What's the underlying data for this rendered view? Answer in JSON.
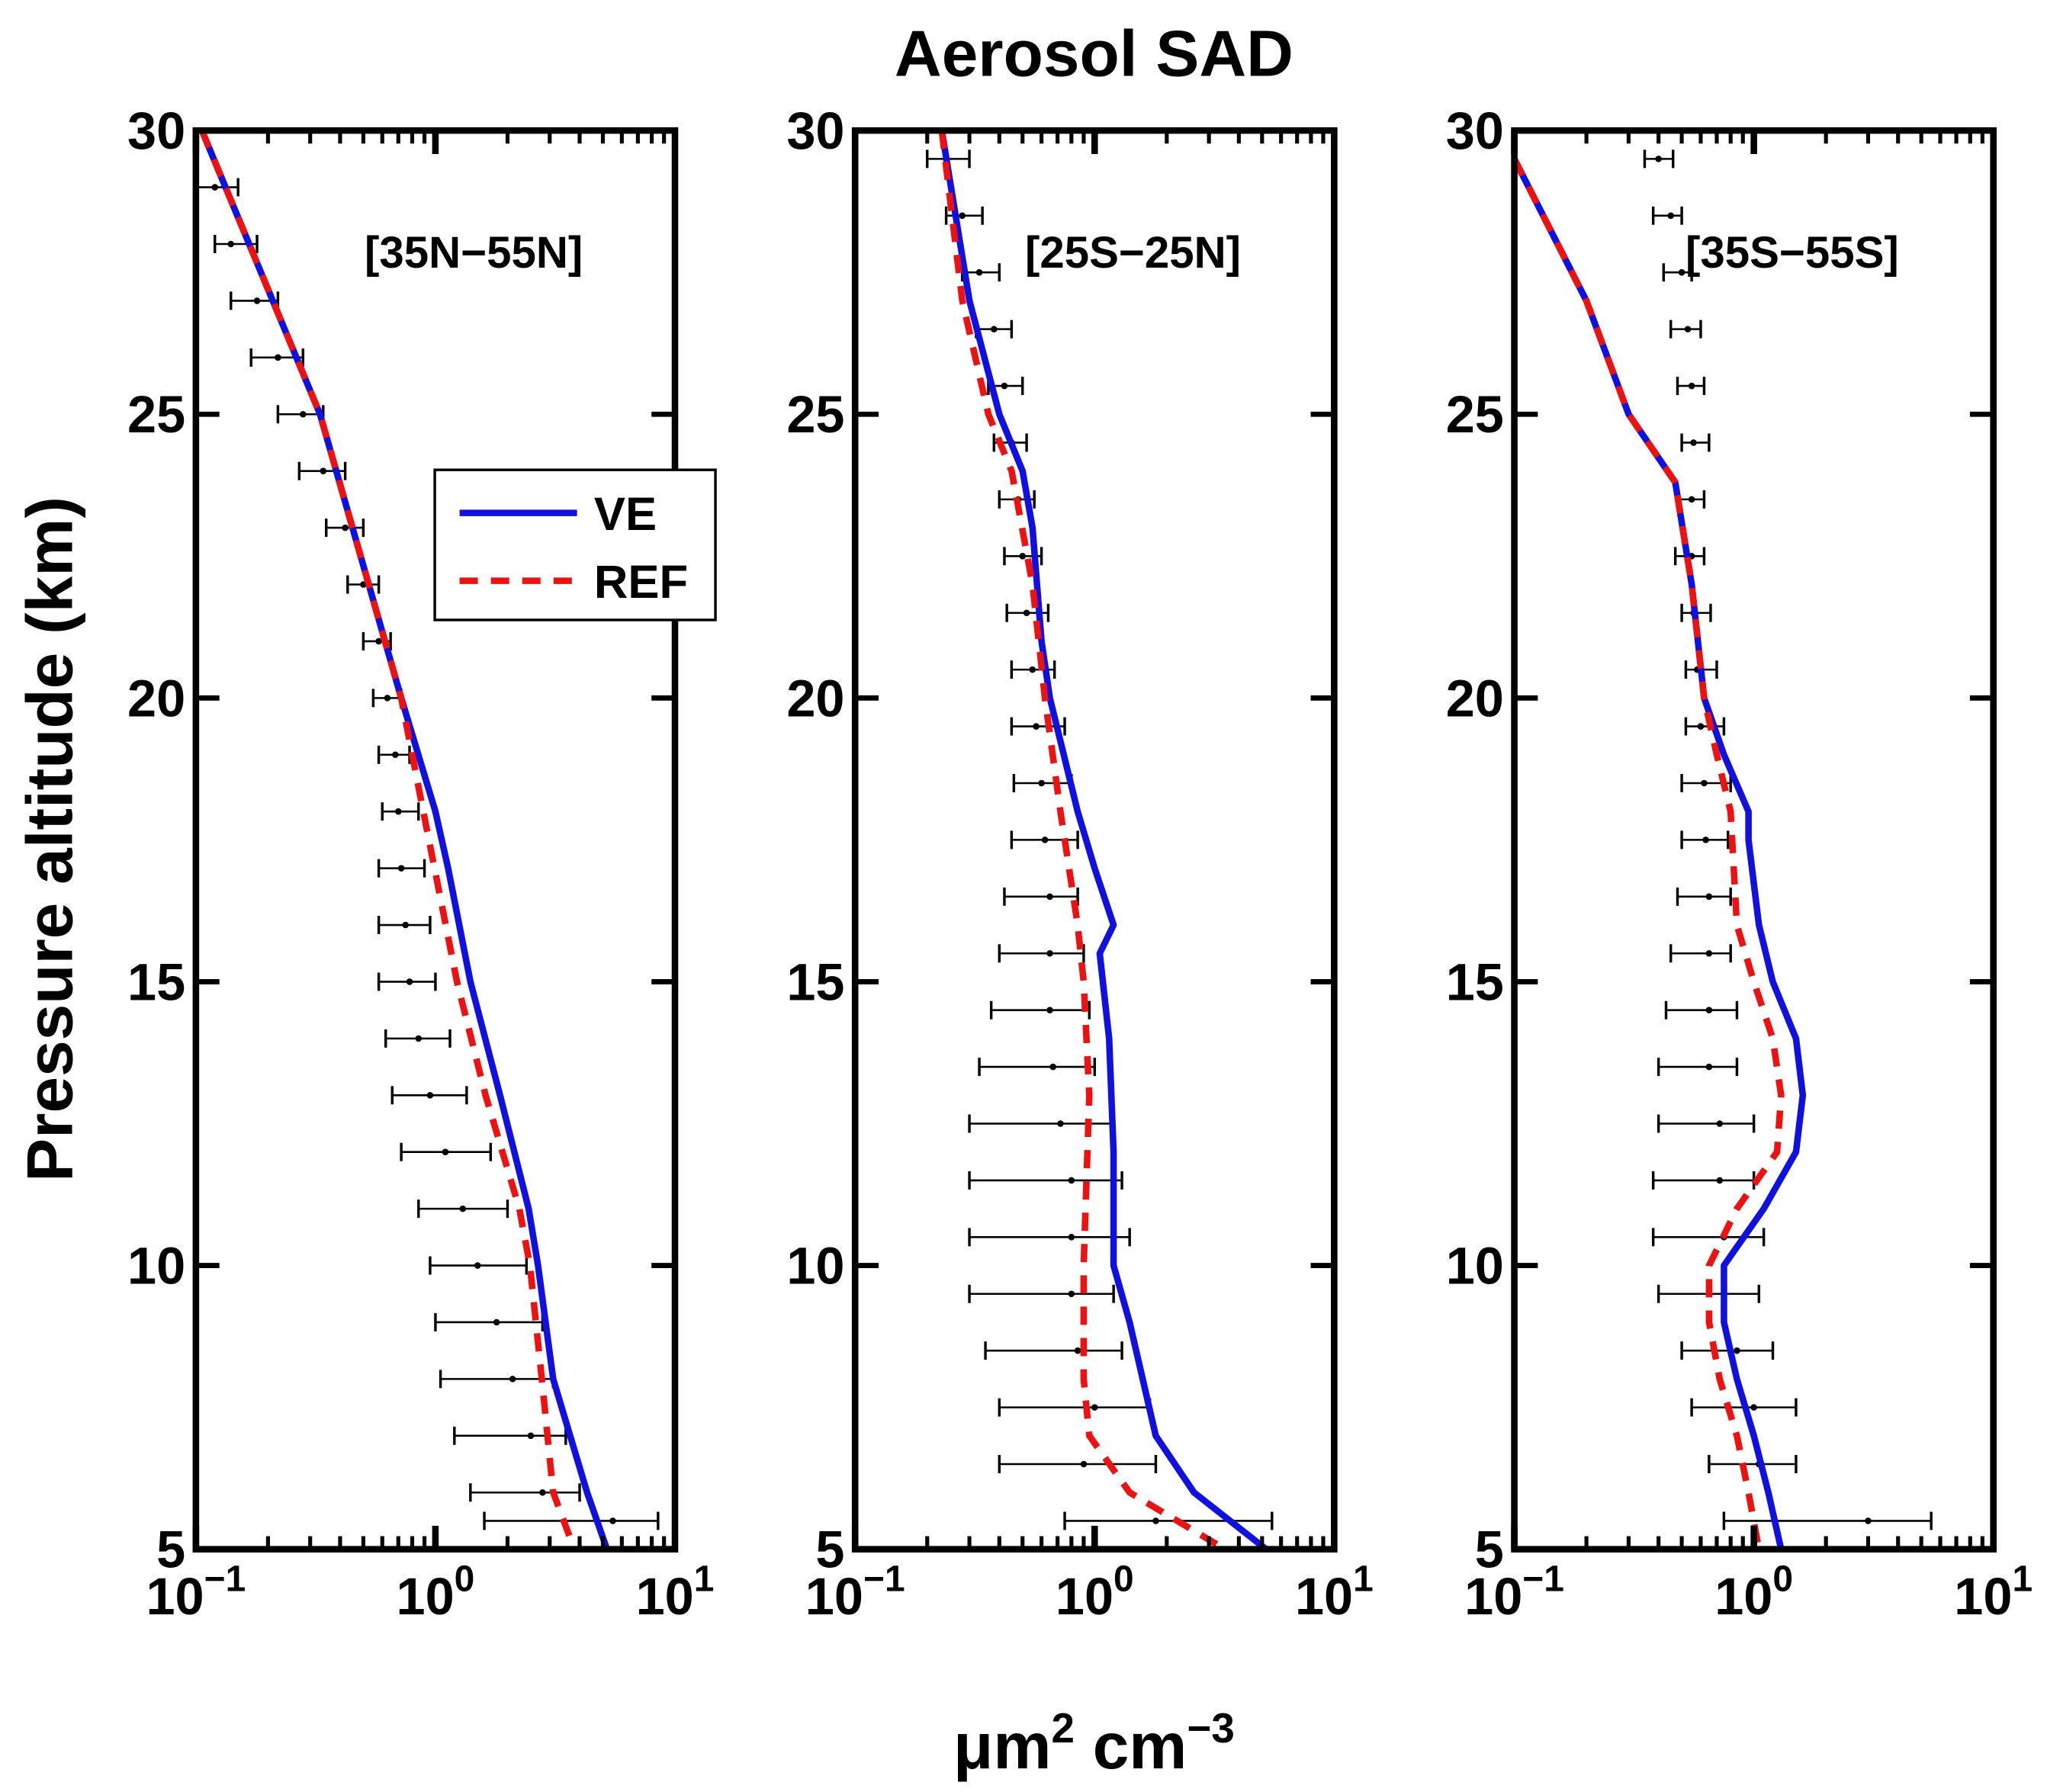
{
  "chart_data": {
    "type": "line",
    "title": "Aerosol SAD",
    "ylabel": "Pressure altitude (km)",
    "xlabel": {
      "base": "μm",
      "sup1": "2",
      "mid": " cm",
      "sup2": "−3"
    },
    "xscale": "log",
    "xlim": [
      0.1,
      10
    ],
    "ylim": [
      5,
      30
    ],
    "xticks": [
      {
        "base": "10",
        "exp": "−1"
      },
      {
        "base": "10",
        "exp": "0"
      },
      {
        "base": "10",
        "exp": "1"
      }
    ],
    "yticks": [
      "5",
      "10",
      "15",
      "20",
      "25",
      "30"
    ],
    "legend": {
      "placement": "inside first panel, upper-middle",
      "entries": [
        {
          "label": "VE",
          "color": "#1010e0",
          "style": "solid"
        },
        {
          "label": "REF",
          "color": "#ee1111",
          "style": "dashed"
        }
      ]
    },
    "panels": [
      {
        "label": "[35N−55N]",
        "series": [
          {
            "name": "VE",
            "alt": [
              30,
              25,
              20,
              18,
              17,
              15,
              13,
              11,
              10,
              8,
              6,
              5
            ],
            "x": [
              0.106,
              0.33,
              0.72,
              1.0,
              1.13,
              1.4,
              1.86,
              2.45,
              2.68,
              3.1,
              4.3,
              5.2
            ]
          },
          {
            "name": "REF",
            "alt": [
              30,
              25,
              20,
              18,
              15,
              13,
              11,
              10,
              8,
              6,
              5
            ],
            "x": [
              0.106,
              0.33,
              0.72,
              0.89,
              1.23,
              1.62,
              2.24,
              2.48,
              2.78,
              3.1,
              3.8
            ]
          }
        ],
        "obs": {
          "alt": [
            29,
            28,
            27,
            26,
            25,
            24,
            23,
            22,
            21,
            20,
            19,
            18,
            17,
            16,
            15,
            14,
            13,
            12,
            11,
            10,
            9,
            8,
            7,
            6,
            5.5
          ],
          "mean": [
            0.12,
            0.14,
            0.18,
            0.22,
            0.28,
            0.34,
            0.42,
            0.5,
            0.58,
            0.63,
            0.68,
            0.7,
            0.72,
            0.75,
            0.78,
            0.85,
            0.95,
            1.1,
            1.3,
            1.5,
            1.8,
            2.1,
            2.5,
            2.8,
            5.5
          ],
          "low": [
            0.1,
            0.12,
            0.14,
            0.17,
            0.22,
            0.27,
            0.35,
            0.43,
            0.5,
            0.55,
            0.58,
            0.6,
            0.58,
            0.58,
            0.58,
            0.62,
            0.66,
            0.72,
            0.85,
            0.95,
            1.0,
            1.05,
            1.2,
            1.4,
            1.6
          ],
          "high": [
            0.15,
            0.18,
            0.22,
            0.28,
            0.34,
            0.42,
            0.5,
            0.58,
            0.65,
            0.72,
            0.78,
            0.85,
            0.9,
            0.95,
            1.0,
            1.15,
            1.35,
            1.7,
            2.0,
            2.4,
            2.8,
            3.1,
            3.5,
            4.0,
            8.5
          ]
        }
      },
      {
        "label": "[25S−25N]",
        "series": [
          {
            "name": "VE",
            "alt": [
              30,
              27,
              25,
              24,
              23,
              21,
              20,
              18,
              17,
              16,
              15.5,
              14,
              12,
              10,
              9,
              7,
              6,
              5
            ],
            "x": [
              0.23,
              0.3,
              0.4,
              0.5,
              0.55,
              0.6,
              0.65,
              0.85,
              1.0,
              1.2,
              1.05,
              1.15,
              1.2,
              1.2,
              1.4,
              1.8,
              2.6,
              5.2
            ]
          },
          {
            "name": "REF",
            "alt": [
              30,
              27,
              25,
              24,
              22,
              20,
              18,
              16,
              15,
              13,
              10,
              8,
              7,
              6,
              5
            ],
            "x": [
              0.23,
              0.28,
              0.36,
              0.45,
              0.55,
              0.62,
              0.72,
              0.85,
              0.9,
              0.95,
              0.9,
              0.9,
              0.95,
              1.4,
              3.5
            ]
          }
        ],
        "obs": {
          "alt": [
            29.5,
            28.5,
            27.5,
            26.5,
            25.5,
            24.5,
            23.5,
            22.5,
            21.5,
            20.5,
            19.5,
            18.5,
            17.5,
            16.5,
            15.5,
            14.5,
            13.5,
            12.5,
            11.5,
            10.5,
            9.5,
            8.5,
            7.5,
            6.5,
            5.5
          ],
          "mean": [
            0.24,
            0.28,
            0.33,
            0.38,
            0.42,
            0.45,
            0.48,
            0.5,
            0.52,
            0.55,
            0.57,
            0.6,
            0.62,
            0.65,
            0.65,
            0.65,
            0.67,
            0.72,
            0.8,
            0.8,
            0.8,
            0.85,
            1.0,
            0.9,
            1.8
          ],
          "low": [
            0.2,
            0.24,
            0.28,
            0.32,
            0.36,
            0.38,
            0.4,
            0.42,
            0.43,
            0.45,
            0.45,
            0.46,
            0.45,
            0.42,
            0.4,
            0.37,
            0.33,
            0.3,
            0.3,
            0.3,
            0.3,
            0.35,
            0.4,
            0.4,
            0.75
          ],
          "high": [
            0.3,
            0.34,
            0.4,
            0.45,
            0.5,
            0.52,
            0.56,
            0.6,
            0.64,
            0.68,
            0.75,
            0.8,
            0.85,
            0.85,
            0.9,
            0.95,
            1.0,
            1.2,
            1.3,
            1.4,
            1.2,
            1.3,
            1.7,
            1.8,
            5.5
          ]
        }
      },
      {
        "label": "[35S−55S]",
        "series": [
          {
            "name": "VE",
            "alt": [
              29.5,
              27,
              25,
              23.8,
              22,
              20,
              19,
              18,
              17.5,
              16,
              15,
              14,
              13,
              12,
              11,
              10,
              9,
              8,
              7,
              6,
              5
            ],
            "x": [
              0.1,
              0.2,
              0.3,
              0.47,
              0.55,
              0.62,
              0.75,
              0.95,
              0.95,
              1.05,
              1.2,
              1.5,
              1.6,
              1.5,
              1.1,
              0.75,
              0.75,
              0.85,
              1.0,
              1.15,
              1.3
            ]
          },
          {
            "name": "REF",
            "alt": [
              29.5,
              27,
              25,
              23.8,
              22,
              20,
              19,
              18,
              16,
              15,
              14,
              13,
              12,
              11,
              10,
              9,
              8,
              7,
              6,
              5
            ],
            "x": [
              0.1,
              0.2,
              0.3,
              0.47,
              0.55,
              0.62,
              0.7,
              0.8,
              0.85,
              1.0,
              1.2,
              1.3,
              1.25,
              0.85,
              0.65,
              0.65,
              0.72,
              0.85,
              0.95,
              1.05
            ]
          }
        ],
        "obs": {
          "alt": [
            29.5,
            28.5,
            27.5,
            26.5,
            25.5,
            24.5,
            23.5,
            22.5,
            21.5,
            20.5,
            19.5,
            18.5,
            17.5,
            16.5,
            15.5,
            14.5,
            13.5,
            12.5,
            11.5,
            10.5,
            9.5,
            8.5,
            7.5,
            6.5,
            5.5
          ],
          "mean": [
            0.4,
            0.45,
            0.5,
            0.53,
            0.55,
            0.56,
            0.55,
            0.55,
            0.56,
            0.58,
            0.6,
            0.62,
            0.63,
            0.65,
            0.65,
            0.65,
            0.65,
            0.72,
            0.72,
            0.75,
            0.75,
            0.85,
            1.0,
            1.05,
            3.0
          ],
          "low": [
            0.35,
            0.38,
            0.42,
            0.45,
            0.48,
            0.5,
            0.48,
            0.47,
            0.5,
            0.52,
            0.52,
            0.5,
            0.5,
            0.48,
            0.45,
            0.43,
            0.4,
            0.4,
            0.38,
            0.38,
            0.4,
            0.5,
            0.55,
            0.65,
            0.75
          ],
          "high": [
            0.46,
            0.5,
            0.55,
            0.6,
            0.62,
            0.65,
            0.62,
            0.62,
            0.66,
            0.7,
            0.75,
            0.8,
            0.78,
            0.8,
            0.8,
            0.85,
            0.85,
            1.0,
            1.0,
            1.1,
            1.05,
            1.2,
            1.5,
            1.5,
            5.5
          ]
        }
      }
    ]
  }
}
